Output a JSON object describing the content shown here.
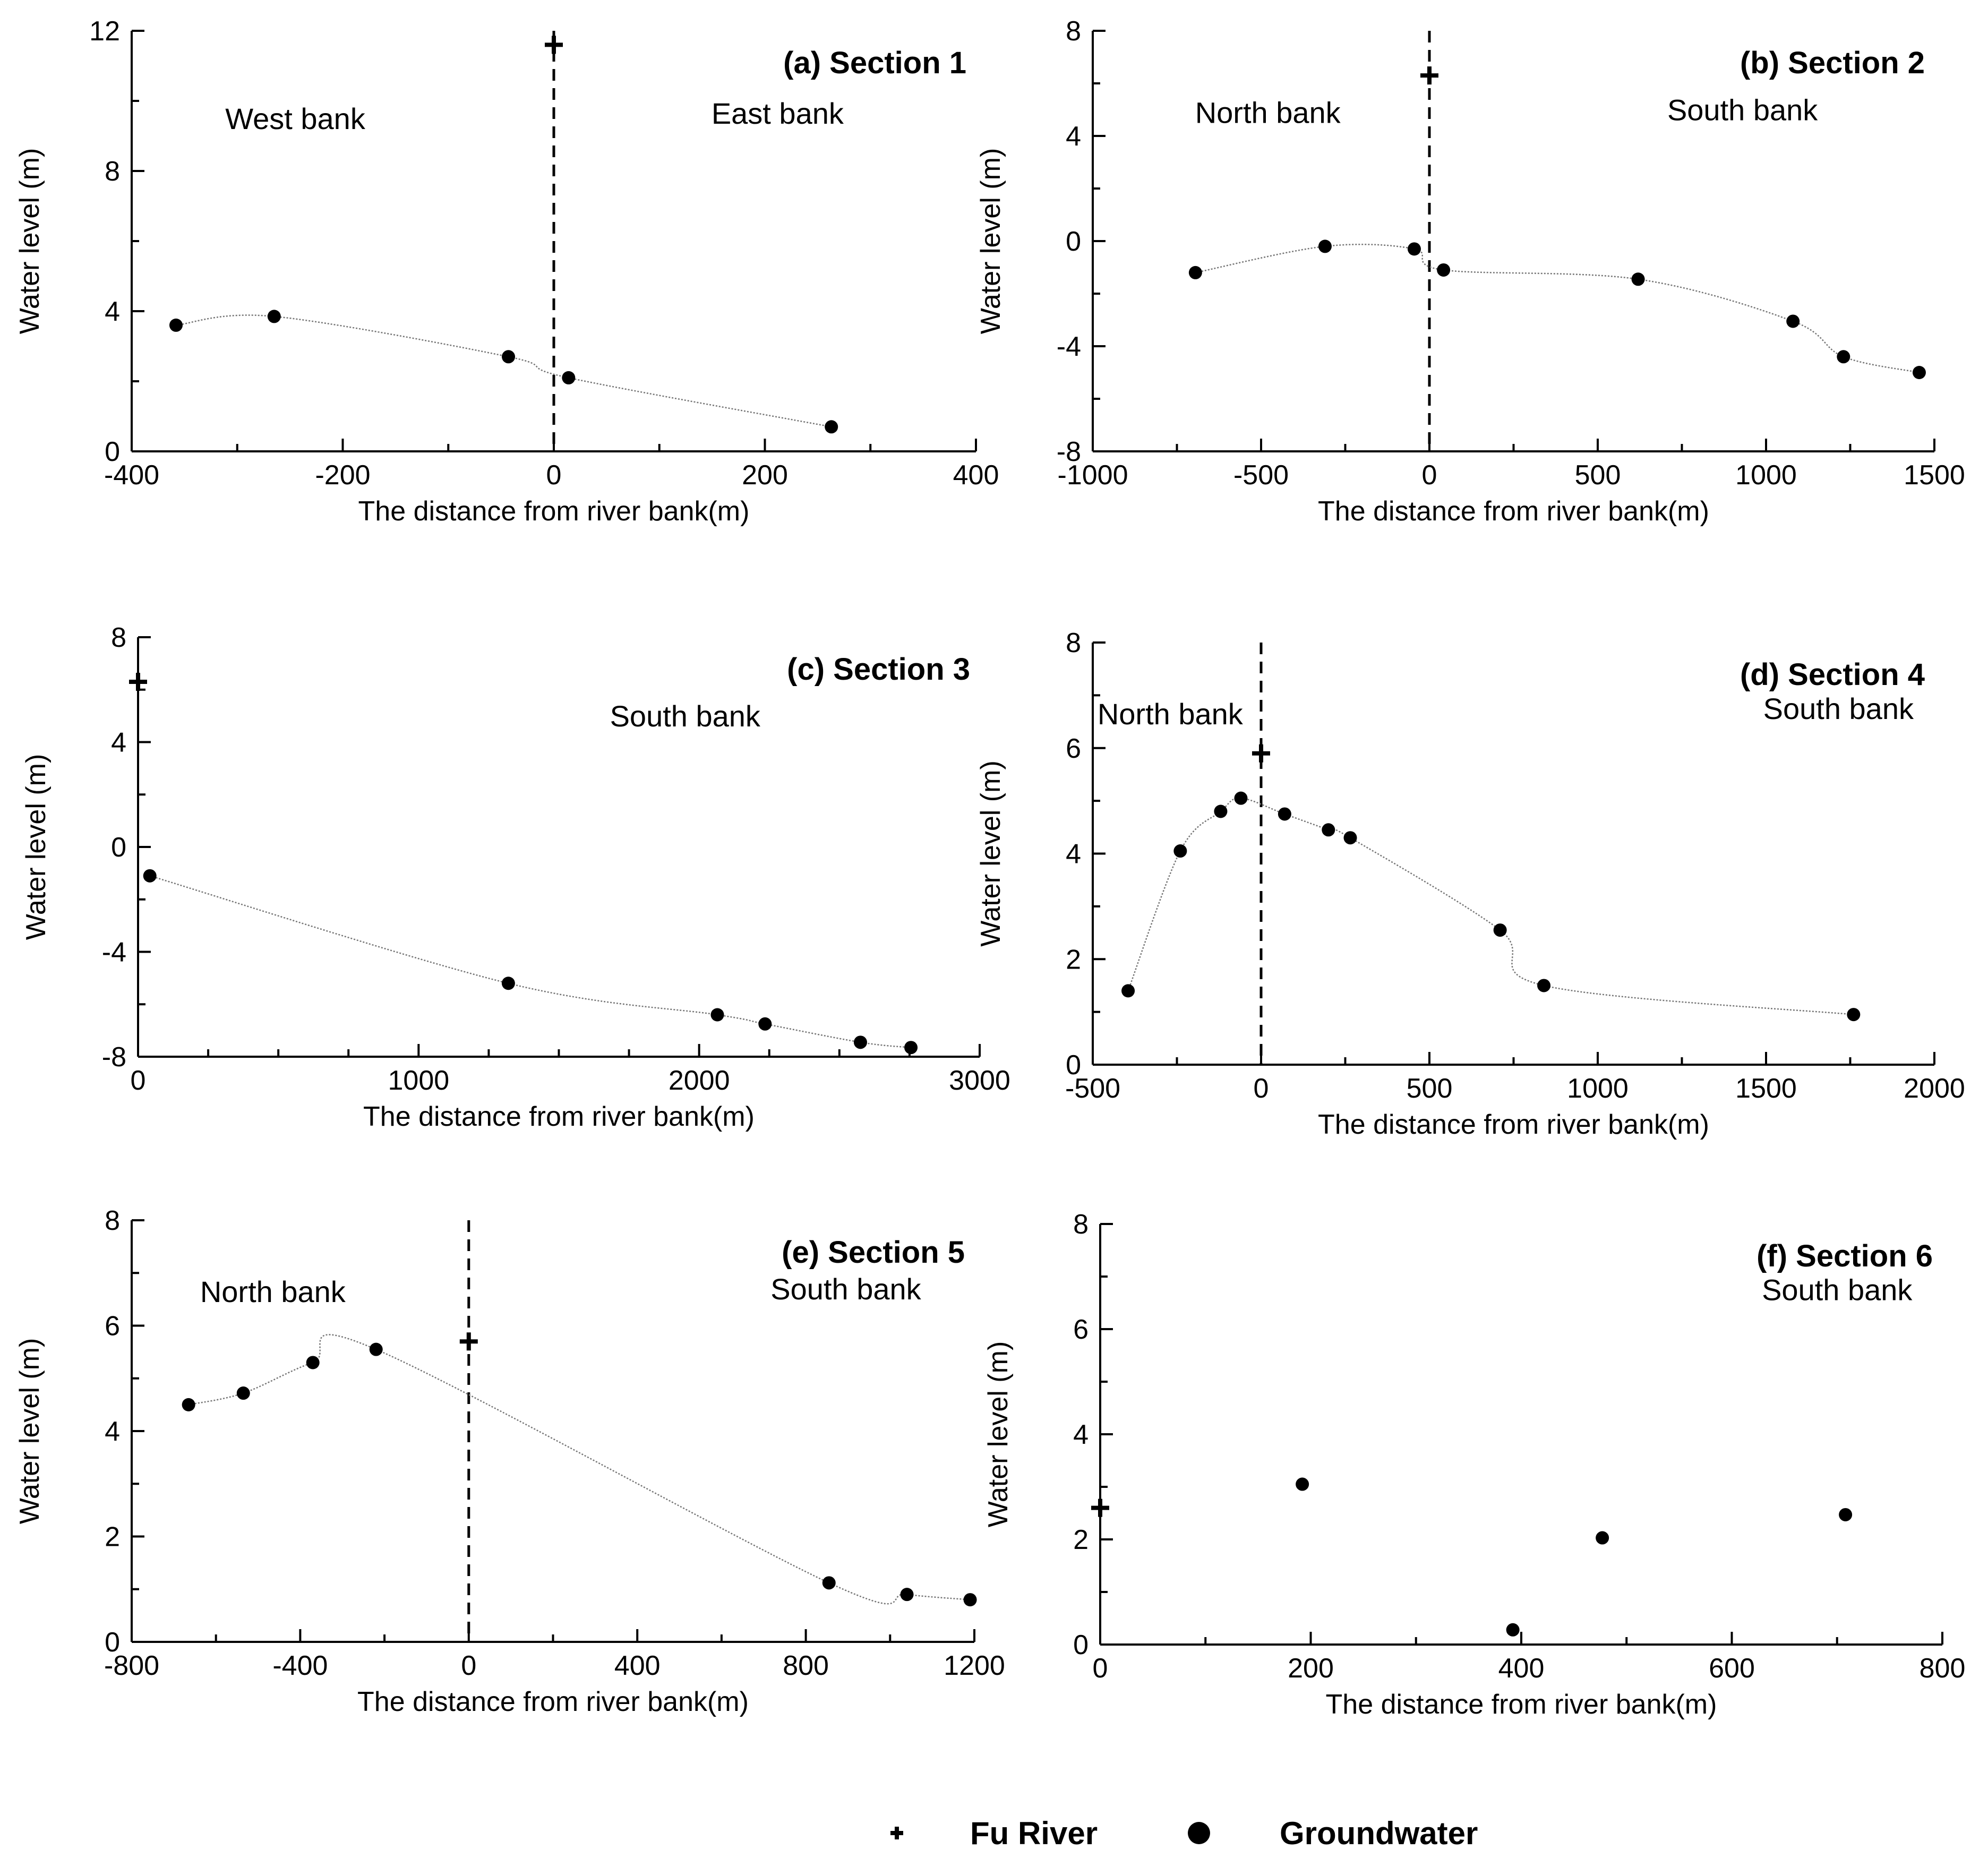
{
  "legend": {
    "river_label": "Fu River",
    "groundwater_label": "Groundwater"
  },
  "chart_data": [
    {
      "type": "scatter",
      "title": "(a) Section 1",
      "xlabel": "The distance from river bank(m)",
      "ylabel": "Water level (m)",
      "xlim": [
        -400,
        400
      ],
      "ylim": [
        0,
        12
      ],
      "xticks": [
        -400,
        -200,
        0,
        200,
        400
      ],
      "yticks": [
        0,
        4,
        8,
        12
      ],
      "xminor": 100,
      "yminor": 2,
      "annotations": [
        {
          "text": "West bank",
          "x": -245,
          "y": 9.2
        },
        {
          "text": "East bank",
          "x": 212,
          "y": 9.35
        }
      ],
      "river": {
        "x": 0,
        "y": 11.6
      },
      "divider_x": 0,
      "fit_line": true,
      "series": [
        {
          "name": "Groundwater",
          "x": [
            -358,
            -265,
            -43,
            14,
            263
          ],
          "y": [
            3.6,
            3.85,
            2.7,
            2.1,
            0.7
          ]
        }
      ]
    },
    {
      "type": "scatter",
      "title": "(b) Section 2",
      "xlabel": "The distance from river bank(m)",
      "ylabel": "Water level (m)",
      "xlim": [
        -1000,
        1500
      ],
      "ylim": [
        -8,
        8
      ],
      "xticks": [
        -1000,
        -500,
        0,
        500,
        1000,
        1500
      ],
      "yticks": [
        -8,
        -4,
        0,
        4,
        8
      ],
      "xminor": 250,
      "yminor": 2,
      "annotations": [
        {
          "text": "North bank",
          "x": -480,
          "y": 4.5
        },
        {
          "text": "South  bank",
          "x": 930,
          "y": 4.6
        }
      ],
      "river": {
        "x": 0,
        "y": 6.3
      },
      "divider_x": 0,
      "fit_line": true,
      "series": [
        {
          "name": "Groundwater",
          "x": [
            -695,
            -310,
            -45,
            42,
            620,
            1080,
            1230,
            1455
          ],
          "y": [
            -1.2,
            -0.2,
            -0.3,
            -1.1,
            -1.45,
            -3.05,
            -4.4,
            -5.0
          ]
        }
      ]
    },
    {
      "type": "scatter",
      "title": "(c) Section 3",
      "xlabel": "The distance from river bank(m)",
      "ylabel": "Water level (m)",
      "xlim": [
        0,
        3000
      ],
      "ylim": [
        -8,
        8
      ],
      "xticks": [
        0,
        1000,
        2000,
        3000
      ],
      "yticks": [
        -8,
        -4,
        0,
        4,
        8
      ],
      "xminor": 250,
      "yminor": 2,
      "annotations": [
        {
          "text": "South  bank",
          "x": 1950,
          "y": 4.6
        }
      ],
      "river": {
        "x": 0,
        "y": 6.3
      },
      "divider_x": null,
      "fit_line": true,
      "series": [
        {
          "name": "Groundwater",
          "x": [
            42,
            1320,
            2065,
            2235,
            2575,
            2755
          ],
          "y": [
            -1.1,
            -5.2,
            -6.4,
            -6.75,
            -7.45,
            -7.65
          ]
        }
      ]
    },
    {
      "type": "scatter",
      "title": "(d) Section 4",
      "xlabel": "The distance from river bank(m)",
      "ylabel": "Water level (m)",
      "xlim": [
        -500,
        2000
      ],
      "ylim": [
        0,
        8
      ],
      "xticks": [
        -500,
        0,
        500,
        1000,
        1500,
        2000
      ],
      "yticks": [
        0,
        2,
        4,
        6,
        8
      ],
      "xminor": 250,
      "yminor": 1,
      "annotations": [
        {
          "text": "North bank",
          "x": -270,
          "y": 6.45
        },
        {
          "text": "South  bank",
          "x": 1715,
          "y": 6.55
        }
      ],
      "river": {
        "x": 0,
        "y": 5.9
      },
      "divider_x": 0,
      "fit_line": true,
      "series": [
        {
          "name": "Groundwater",
          "x": [
            -395,
            -240,
            -120,
            -60,
            70,
            200,
            265,
            710,
            840,
            1760
          ],
          "y": [
            1.4,
            4.05,
            4.8,
            5.05,
            4.75,
            4.45,
            4.3,
            2.55,
            1.5,
            0.95
          ]
        }
      ]
    },
    {
      "type": "scatter",
      "title": "(e) Section 5",
      "xlabel": "The distance from river bank(m)",
      "ylabel": "Water level (m)",
      "xlim": [
        -800,
        1200
      ],
      "ylim": [
        0,
        8
      ],
      "xticks": [
        -800,
        -400,
        0,
        400,
        800,
        1200
      ],
      "yticks": [
        0,
        2,
        4,
        6,
        8
      ],
      "xminor": 200,
      "yminor": 1,
      "annotations": [
        {
          "text": "North bank",
          "x": -465,
          "y": 6.45
        },
        {
          "text": "South  bank",
          "x": 895,
          "y": 6.5
        }
      ],
      "river": {
        "x": 0,
        "y": 5.7
      },
      "divider_x": 0,
      "fit_line": true,
      "series": [
        {
          "name": "Groundwater",
          "x": [
            -665,
            -535,
            -370,
            -220,
            855,
            1040,
            1190
          ],
          "y": [
            4.5,
            4.72,
            5.3,
            5.55,
            1.12,
            0.9,
            0.8
          ]
        }
      ]
    },
    {
      "type": "scatter",
      "title": "(f) Section 6",
      "xlabel": "The distance from river bank(m)",
      "ylabel": "Water level (m)",
      "xlim": [
        0,
        800
      ],
      "ylim": [
        0,
        8
      ],
      "xticks": [
        0,
        200,
        400,
        600,
        800
      ],
      "yticks": [
        0,
        2,
        4,
        6,
        8
      ],
      "xminor": 100,
      "yminor": 1,
      "annotations": [
        {
          "text": "South  bank",
          "x": 700,
          "y": 6.55
        }
      ],
      "river": {
        "x": 0,
        "y": 2.6
      },
      "divider_x": null,
      "fit_line": false,
      "series": [
        {
          "name": "Groundwater",
          "x": [
            192,
            392,
            477,
            708
          ],
          "y": [
            3.05,
            0.28,
            2.03,
            2.47
          ]
        }
      ]
    }
  ]
}
